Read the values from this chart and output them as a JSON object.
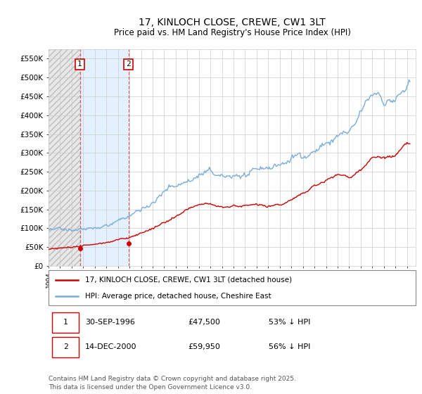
{
  "title": "17, KINLOCH CLOSE, CREWE, CW1 3LT",
  "subtitle": "Price paid vs. HM Land Registry's House Price Index (HPI)",
  "legend_entry1": "17, KINLOCH CLOSE, CREWE, CW1 3LT (detached house)",
  "legend_entry2": "HPI: Average price, detached house, Cheshire East",
  "sale1_date": "30-SEP-1996",
  "sale1_price": 47500,
  "sale1_label": "1",
  "sale1_pct": "53% ↓ HPI",
  "sale2_date": "14-DEC-2000",
  "sale2_price": 59950,
  "sale2_label": "2",
  "sale2_pct": "56% ↓ HPI",
  "hpi_color": "#7aadda",
  "price_color": "#cc0000",
  "annotation_box_color": "#cc0000",
  "shade_color": "#ddeeff",
  "footer": "Contains HM Land Registry data © Crown copyright and database right 2025.\nThis data is licensed under the Open Government Licence v3.0.",
  "ylim": [
    0,
    575000
  ],
  "ytick_vals": [
    0,
    50000,
    100000,
    150000,
    200000,
    250000,
    300000,
    350000,
    400000,
    450000,
    500000,
    550000
  ],
  "ytick_labels": [
    "£0",
    "£50K",
    "£100K",
    "£150K",
    "£200K",
    "£250K",
    "£300K",
    "£350K",
    "£400K",
    "£450K",
    "£500K",
    "£550K"
  ],
  "xlim_start": 1994.0,
  "xlim_end": 2025.75,
  "sale1_year": 1996.75,
  "sale2_year": 2000.95
}
